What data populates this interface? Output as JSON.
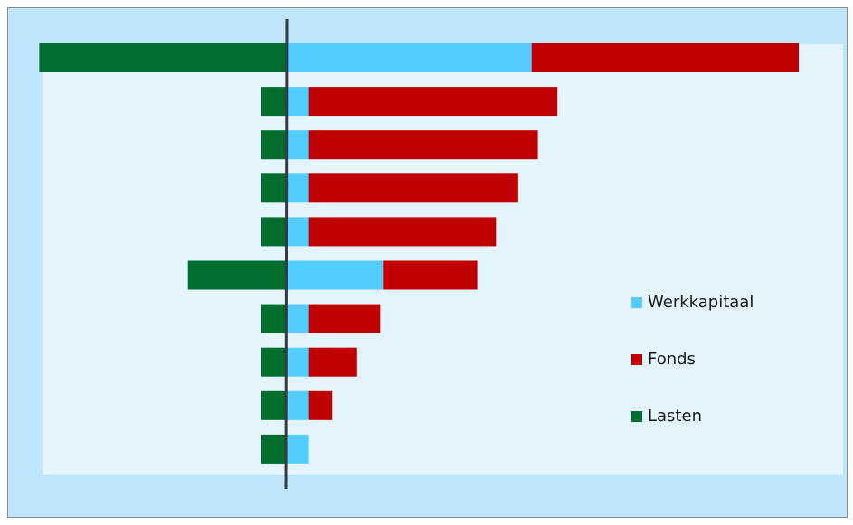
{
  "chart_data": {
    "type": "bar",
    "orientation": "horizontal",
    "stacked": true,
    "categories": [
      "",
      "",
      "",
      "",
      "",
      "",
      "",
      "",
      "",
      ""
    ],
    "series": [
      {
        "name": "Werkkapitaal",
        "color": "#55ccff",
        "values": [
          275,
          25,
          25,
          25,
          25,
          108,
          25,
          25,
          25,
          25
        ]
      },
      {
        "name": "Fonds",
        "color": "#c00000",
        "values": [
          300,
          279,
          257,
          235,
          210,
          106,
          80,
          54,
          26,
          0
        ]
      },
      {
        "name": "Lasten",
        "color": "#006e2e",
        "values": [
          -278,
          -29,
          -29,
          -29,
          -29,
          -111,
          -29,
          -29,
          -29,
          -29
        ]
      }
    ],
    "xlim": [
      -280,
      580
    ],
    "grid": false,
    "legend_position": "right"
  }
}
